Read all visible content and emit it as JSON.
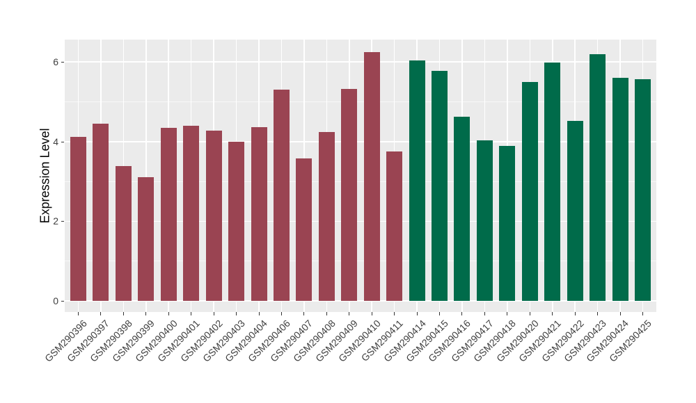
{
  "figure": {
    "background": "#FFFFFF",
    "panel_background": "#EBEBEB",
    "grid_major_color": "#FFFFFF",
    "grid_minor_color": "#FFFFFF",
    "tick_mark_color": "#333333",
    "axis_text_color": "#3F3F3F",
    "axis_title_color": "#000000"
  },
  "chart_data": {
    "type": "bar",
    "title": "",
    "xlabel": "",
    "ylabel": "Expression Level",
    "ylim": [
      0,
      6.56
    ],
    "yticks": [
      0,
      2,
      4,
      6
    ],
    "yticks_minor": [
      1,
      3,
      5
    ],
    "grid": "on",
    "legend": "none",
    "x_label_rotation_deg": 45,
    "group_colors": {
      "group1": "#9A4452",
      "group2": "#006B4A"
    },
    "categories": [
      "GSM290396",
      "GSM290397",
      "GSM290398",
      "GSM290399",
      "GSM290400",
      "GSM290401",
      "GSM290402",
      "GSM290403",
      "GSM290404",
      "GSM290406",
      "GSM290407",
      "GSM290408",
      "GSM290409",
      "GSM290410",
      "GSM290411",
      "GSM290414",
      "GSM290415",
      "GSM290416",
      "GSM290417",
      "GSM290418",
      "GSM290420",
      "GSM290421",
      "GSM290422",
      "GSM290423",
      "GSM290424",
      "GSM290425"
    ],
    "values": [
      4.12,
      4.45,
      3.39,
      3.11,
      4.35,
      4.4,
      4.27,
      4.0,
      4.36,
      5.3,
      3.58,
      4.24,
      5.32,
      6.25,
      3.76,
      6.04,
      5.78,
      4.62,
      4.04,
      3.89,
      5.49,
      5.99,
      4.52,
      6.2,
      5.6,
      5.57
    ],
    "groups": [
      "group1",
      "group1",
      "group1",
      "group1",
      "group1",
      "group1",
      "group1",
      "group1",
      "group1",
      "group1",
      "group1",
      "group1",
      "group1",
      "group1",
      "group1",
      "group2",
      "group2",
      "group2",
      "group2",
      "group2",
      "group2",
      "group2",
      "group2",
      "group2",
      "group2",
      "group2"
    ]
  }
}
